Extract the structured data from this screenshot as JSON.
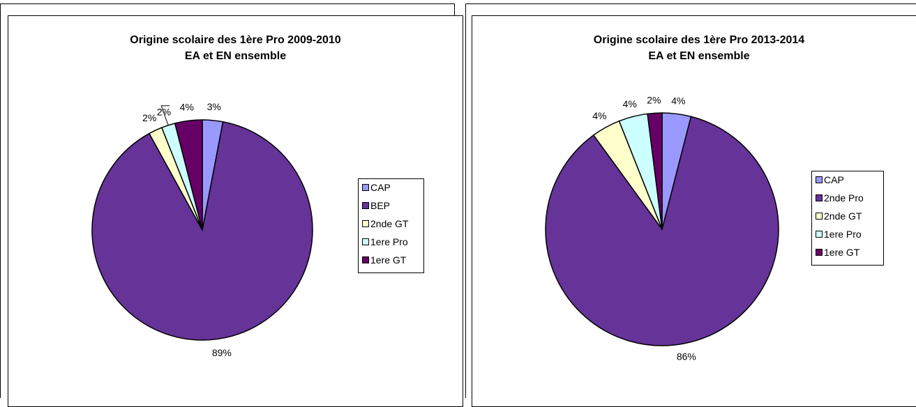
{
  "colors": {
    "CAP": "#9999ff",
    "purple": "#663399",
    "2nde GT": "#ffffcc",
    "1ere Pro": "#ccffff",
    "1ere GT": "#660066"
  },
  "chart_data": [
    {
      "type": "pie",
      "title_line1": "Origine scolaire des 1ère Pro 2009-2010",
      "title_line2": "EA et EN ensemble",
      "categories": [
        "CAP",
        "BEP",
        "2nde GT",
        "1ere Pro",
        "1ere GT"
      ],
      "values": [
        3,
        89,
        2,
        2,
        4
      ],
      "labels": [
        "3%",
        "89%",
        "2%",
        "2%",
        "4%"
      ],
      "legend_position": "right"
    },
    {
      "type": "pie",
      "title_line1": "Origine scolaire des 1ère Pro 2013-2014",
      "title_line2": "EA et EN ensemble",
      "categories": [
        "CAP",
        "2nde Pro",
        "2nde GT",
        "1ere Pro",
        "1ere GT"
      ],
      "values": [
        4,
        86,
        4,
        4,
        2
      ],
      "labels": [
        "4%",
        "86%",
        "4%",
        "4%",
        "2%"
      ],
      "legend_position": "right"
    }
  ]
}
